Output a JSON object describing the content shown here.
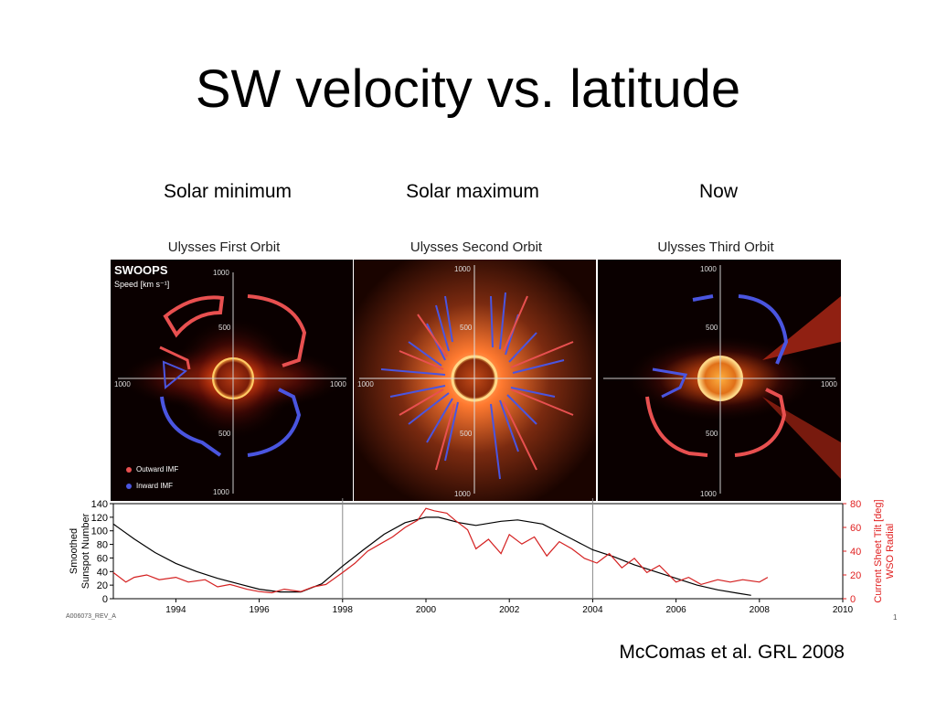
{
  "slide": {
    "title": "SW velocity vs. latitude",
    "citation": "McComas et al. GRL 2008",
    "footer_code": "A006073_REV_A",
    "page_marker": "1"
  },
  "columns": [
    {
      "heading": "Solar minimum",
      "orbit_title": "Ulysses First Orbit"
    },
    {
      "heading": "Solar maximum",
      "orbit_title": "Ulysses Second Orbit"
    },
    {
      "heading": "Now",
      "orbit_title": "Ulysses Third Orbit"
    }
  ],
  "panel_labels": {
    "instrument": "SWOOPS",
    "speed_label": "Speed [km s⁻¹]",
    "tick_1000": "1000",
    "tick_500": "500",
    "legend_outward": "Outward IMF",
    "legend_inward": "Inward IMF"
  },
  "colors": {
    "outward": "#e85050",
    "inward": "#4a55e0",
    "sunspot_line": "#000000",
    "tilt_line": "#d42020",
    "right_axis": "#e02020"
  },
  "chart_data": {
    "type": "line",
    "x_ticks": [
      "1994",
      "1996",
      "1998",
      "2000",
      "2002",
      "2004",
      "2006",
      "2008",
      "2010"
    ],
    "xlim": [
      1992.5,
      2010
    ],
    "left_axis": {
      "label_line1": "Smoothed",
      "label_line2": "Sunspot Number",
      "ticks": [
        "0",
        "20",
        "40",
        "60",
        "80",
        "100",
        "120",
        "140"
      ],
      "ylim": [
        0,
        140
      ]
    },
    "right_axis": {
      "label_line1": "Current Sheet Tilt [deg]",
      "label_line2": "WSO Radial",
      "ticks": [
        "0",
        "20",
        "40",
        "60",
        "80"
      ],
      "ylim": [
        0,
        80
      ]
    },
    "orbit_dividers": [
      1998,
      2004
    ],
    "series": [
      {
        "key": "sunspot",
        "axis": "left",
        "x": [
          1992.5,
          1993.0,
          1993.5,
          1994.0,
          1994.5,
          1995.0,
          1995.5,
          1996.0,
          1996.5,
          1997.0,
          1997.5,
          1998.0,
          1998.5,
          1999.0,
          1999.5,
          2000.0,
          2000.3,
          2000.8,
          2001.2,
          2001.8,
          2002.2,
          2002.8,
          2003.5,
          2004.0,
          2004.5,
          2005.0,
          2005.5,
          2006.0,
          2006.5,
          2007.0,
          2007.5,
          2007.8
        ],
        "y": [
          110,
          88,
          68,
          52,
          40,
          30,
          22,
          14,
          10,
          10,
          22,
          48,
          72,
          95,
          112,
          120,
          120,
          112,
          108,
          114,
          116,
          110,
          88,
          72,
          62,
          50,
          40,
          30,
          20,
          13,
          8,
          5
        ]
      },
      {
        "key": "tilt",
        "axis": "right",
        "x": [
          1992.5,
          1992.8,
          1993.0,
          1993.3,
          1993.6,
          1994.0,
          1994.3,
          1994.7,
          1995.0,
          1995.3,
          1995.7,
          1996.0,
          1996.3,
          1996.6,
          1997.0,
          1997.3,
          1997.6,
          1998.0,
          1998.3,
          1998.6,
          1998.9,
          1999.2,
          1999.5,
          1999.8,
          2000.0,
          2000.2,
          2000.5,
          2000.7,
          2001.0,
          2001.2,
          2001.5,
          2001.8,
          2002.0,
          2002.3,
          2002.6,
          2002.9,
          2003.2,
          2003.5,
          2003.8,
          2004.1,
          2004.4,
          2004.7,
          2005.0,
          2005.3,
          2005.6,
          2006.0,
          2006.3,
          2006.6,
          2007.0,
          2007.3,
          2007.6,
          2008.0,
          2008.2
        ],
        "y": [
          22,
          14,
          18,
          20,
          16,
          18,
          14,
          16,
          10,
          12,
          8,
          6,
          5,
          8,
          6,
          10,
          12,
          22,
          30,
          40,
          46,
          52,
          60,
          66,
          76,
          74,
          72,
          66,
          58,
          42,
          50,
          38,
          54,
          46,
          52,
          36,
          48,
          42,
          34,
          30,
          38,
          26,
          34,
          22,
          28,
          14,
          18,
          12,
          16,
          14,
          16,
          14,
          18
        ]
      }
    ]
  }
}
